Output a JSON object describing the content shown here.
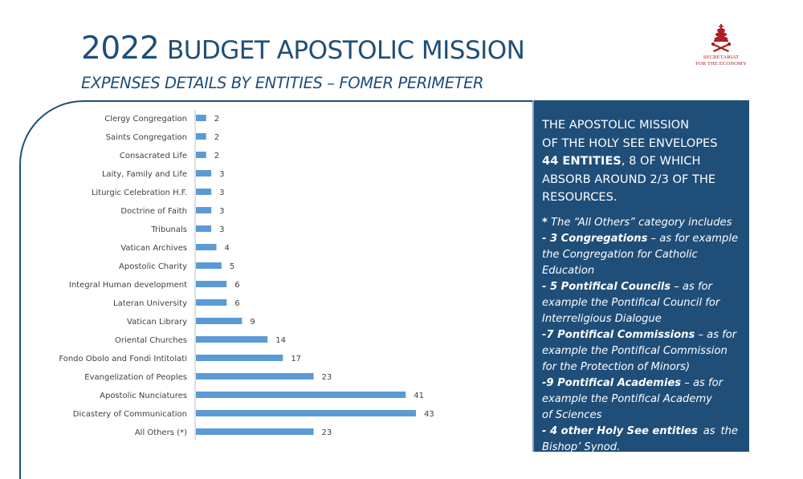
{
  "header": {
    "year": "2022",
    "title_rest": "BUDGET APOSTOLIC MISSION",
    "subtitle": "EXPENSES DETAILS BY ENTITIES – FOMER PERIMETER"
  },
  "logo": {
    "line1": "SECRETARIAT",
    "line2": "FOR THE ECONOMY"
  },
  "panel": {
    "lead_1": "THE APOSTOLIC MISSION",
    "lead_2": "OF THE HOLY SEE ENVELOPES",
    "lead_3_bold": "44 ENTITIES",
    "lead_3_rest": ", 8 OF WHICH",
    "lead_4": "ABSORB AROUND 2/3 OF THE",
    "lead_5": "RESOURCES.",
    "note_star": "*",
    "note_intro": " The “All Others” category includes",
    "n1_bold": "- 3 Congregations",
    "n1_rest": " – as for example",
    "n1_l2": "the Congregation for Catholic",
    "n1_l3": "Education",
    "n2_bold": "- 5 Pontifical Councils",
    "n2_rest": " – as for",
    "n2_l2": "example the Pontifical Council for",
    "n2_l3": "Interreligious  Dialogue",
    "n3_bold": "-7 Pontifical Commissions",
    "n3_rest": " – as for",
    "n3_l2": "example the Pontifical Commission",
    "n3_l3": "for the Protection of Minors)",
    "n4_bold": "-9 Pontifical Academies",
    "n4_rest": " – as for",
    "n4_l2": "example  the  Pontifical Academy",
    "n4_l3": "of Sciences",
    "n5_bold": "- 4  other  Holy See  entities",
    "n5_rest_a": "as",
    "n5_rest_b": "the",
    "n5_l2": "Bishop’ Synod."
  },
  "colors": {
    "brand": "#1f4e79",
    "bar": "#5b9bd5",
    "label": "#404040",
    "logo": "#b01e23"
  },
  "chart_data": {
    "type": "bar",
    "orientation": "horizontal",
    "title": "",
    "xlabel": "",
    "ylabel": "",
    "xlim": [
      0,
      43
    ],
    "categories": [
      "Clergy Congregation",
      "Saints Congregation",
      "Consacrated Life",
      "Laity, Family and Life",
      "Liturgic Celebration H.F.",
      "Doctrine of Faith",
      "Tribunals",
      "Vatican Archives",
      "Apostolic Charity",
      "Integral Human development",
      "Lateran University",
      "Vatican Library",
      "Oriental Churches",
      "Fondo Obolo and Fondi Intitolati",
      "Evangelization of Peoples",
      "Apostolic Nunciatures",
      "Dicastery of Communication",
      "All Others (*)"
    ],
    "values": [
      2,
      2,
      2,
      3,
      3,
      3,
      3,
      4,
      5,
      6,
      6,
      9,
      14,
      17,
      23,
      41,
      43,
      23
    ],
    "data_labels": [
      "2",
      "2",
      "2",
      "3",
      "3",
      "3",
      "3",
      "4",
      "5",
      "6",
      "6",
      "9",
      "14",
      "17",
      "23",
      "41",
      "43",
      "23"
    ]
  }
}
